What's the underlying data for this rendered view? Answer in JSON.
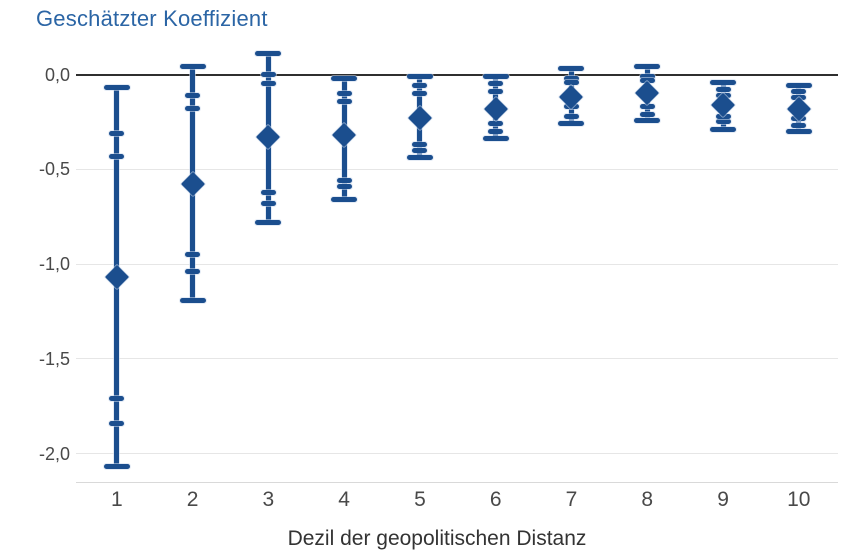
{
  "title": "Geschätzter Koeffizient",
  "x_axis_label": "Dezil der geopolitischen Distanz",
  "colors": {
    "marker": "#1b4e8e",
    "title_text": "#2b65a5",
    "tick_text": "#494949",
    "axis_label_text": "#333333",
    "zero_line": "#2f2f2f",
    "gridline": "#e6e6e6",
    "axis_line": "#d9d9d9",
    "background": "#ffffff"
  },
  "chart_data": {
    "type": "scatter",
    "subtype": "coefficient-plot-with-nested-confidence-intervals",
    "title": "Geschätzter Koeffizient",
    "xlabel": "Dezil der geopolitischen Distanz",
    "ylabel": "Geschätzter Koeffizient",
    "marker_shape": "diamond",
    "legend_position": "none",
    "grid": true,
    "categories": [
      "1",
      "2",
      "3",
      "4",
      "5",
      "6",
      "7",
      "8",
      "9",
      "10"
    ],
    "estimates": [
      -1.07,
      -0.58,
      -0.33,
      -0.32,
      -0.23,
      -0.18,
      -0.12,
      -0.1,
      -0.16,
      -0.18
    ],
    "ci90": [
      [
        -1.71,
        -0.43
      ],
      [
        -0.95,
        -0.18
      ],
      [
        -0.62,
        -0.05
      ],
      [
        -0.56,
        -0.14
      ],
      [
        -0.37,
        -0.1
      ],
      [
        -0.26,
        -0.09
      ],
      [
        -0.17,
        -0.04
      ],
      [
        -0.17,
        -0.03
      ],
      [
        -0.22,
        -0.11
      ],
      [
        -0.23,
        -0.12
      ]
    ],
    "ci95": [
      [
        -1.84,
        -0.31
      ],
      [
        -1.04,
        -0.11
      ],
      [
        -0.68,
        0.0
      ],
      [
        -0.59,
        -0.1
      ],
      [
        -0.4,
        -0.06
      ],
      [
        -0.3,
        -0.05
      ],
      [
        -0.22,
        -0.02
      ],
      [
        -0.21,
        -0.01
      ],
      [
        -0.25,
        -0.08
      ],
      [
        -0.27,
        -0.09
      ]
    ],
    "ci99": [
      [
        -2.07,
        -0.07
      ],
      [
        -1.19,
        0.04
      ],
      [
        -0.78,
        0.11
      ],
      [
        -0.66,
        -0.02
      ],
      [
        -0.44,
        -0.01
      ],
      [
        -0.34,
        -0.01
      ],
      [
        -0.26,
        0.03
      ],
      [
        -0.24,
        0.04
      ],
      [
        -0.29,
        -0.04
      ],
      [
        -0.3,
        -0.06
      ]
    ],
    "yticks": {
      "labels": [
        "0,0",
        "-0,5",
        "-1,0",
        "-1,5",
        "-2,0"
      ],
      "values": [
        0,
        -0.5,
        -1.0,
        -1.5,
        -2.0
      ]
    },
    "ylim": [
      -2.16,
      0.16
    ],
    "xlim": [
      0.5,
      10.5
    ]
  }
}
